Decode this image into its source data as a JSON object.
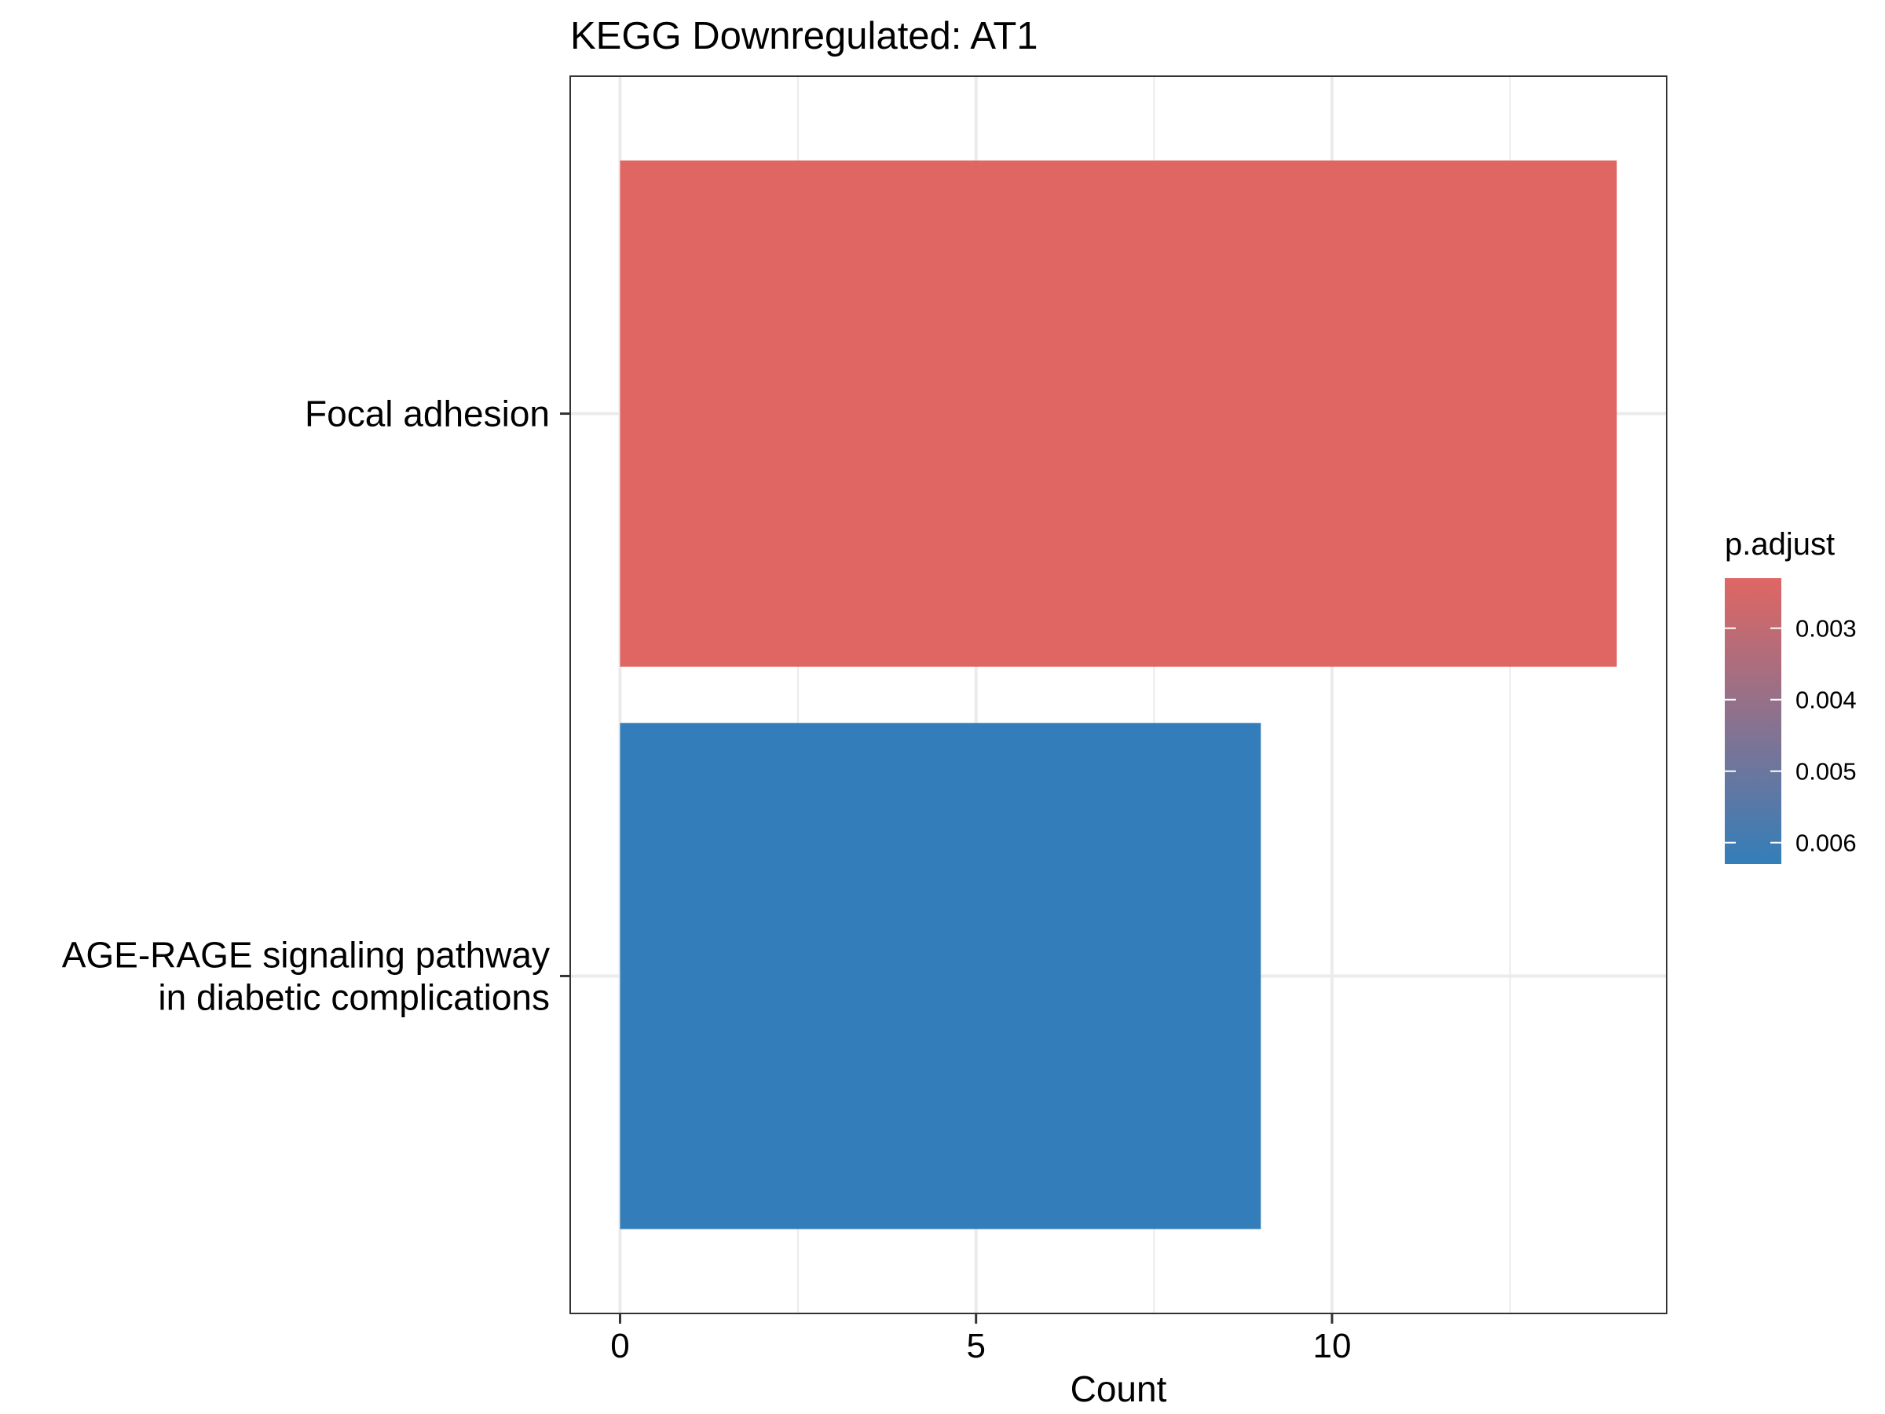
{
  "chart_data": {
    "type": "bar",
    "orientation": "horizontal",
    "title": "KEGG Downregulated: AT1",
    "xlabel": "Count",
    "ylabel": "",
    "xlim": [
      -0.7,
      14.7
    ],
    "x_ticks": [
      0,
      5,
      10
    ],
    "x_minor_ticks": [
      2.5,
      7.5,
      12.5
    ],
    "grid": true,
    "categories": [
      {
        "lines": [
          "Focal adhesion"
        ]
      },
      {
        "lines": [
          "AGE-RAGE signaling pathway",
          "in diabetic complications"
        ]
      }
    ],
    "values": [
      14,
      9
    ],
    "p_adjust": [
      0.0023,
      0.0063
    ],
    "bar_colors": [
      "#E06663",
      "#337EBA"
    ],
    "legend": {
      "title": "p.adjust",
      "placement": "right",
      "type": "colorbar",
      "range": [
        0.0023,
        0.0063
      ],
      "ticks": [
        "0.003",
        "0.004",
        "0.005",
        "0.006"
      ],
      "low_color": "#E06663",
      "high_color": "#337EBA"
    }
  }
}
